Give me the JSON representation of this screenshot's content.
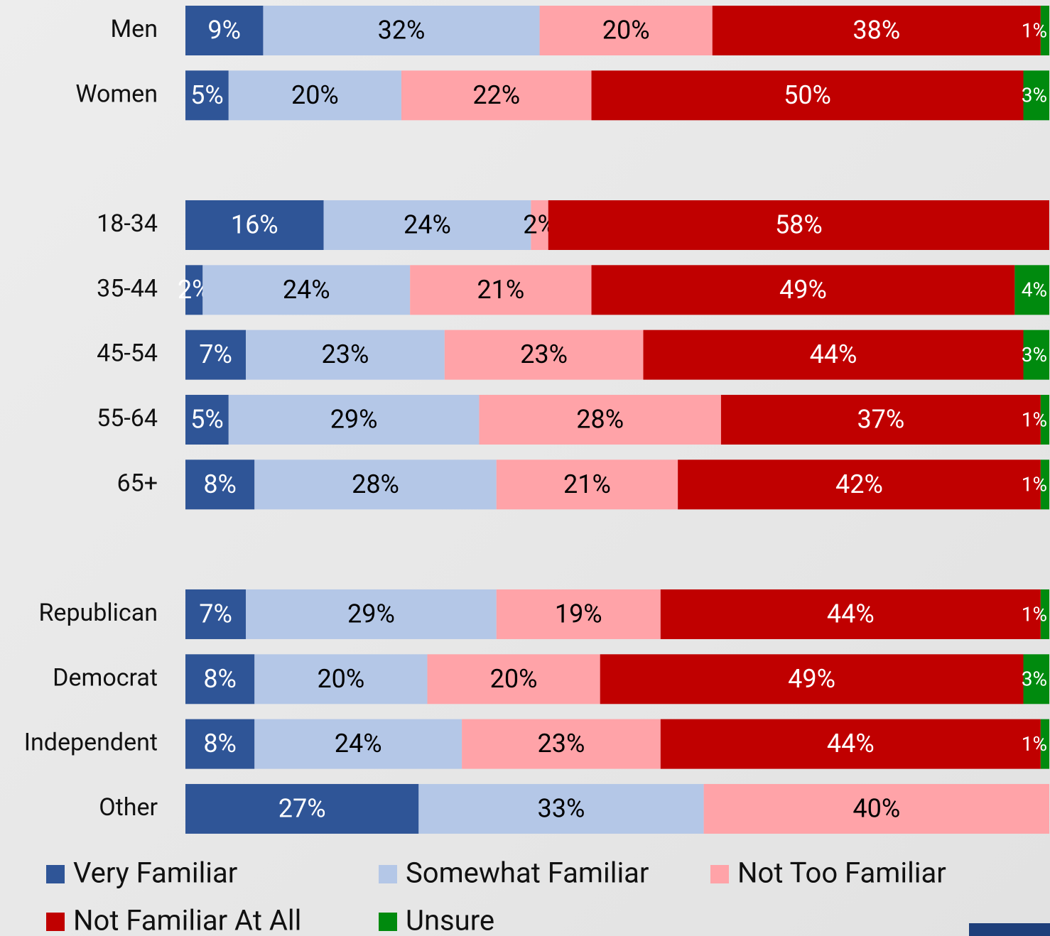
{
  "chart_data": {
    "type": "stacked-bar-horizontal",
    "categories": [
      "Men",
      "Women",
      null,
      "18-34",
      "35-44",
      "45-54",
      "55-64",
      "65+",
      null,
      "Republican",
      "Democrat",
      "Independent",
      "Other"
    ],
    "xlim": [
      0,
      100
    ],
    "legend": "bottom",
    "series": [
      {
        "name": "Very Familiar",
        "color": "#2f5597",
        "values": [
          9,
          5,
          null,
          16,
          2,
          7,
          5,
          8,
          null,
          7,
          8,
          8,
          27
        ],
        "value_labels": [
          "9%",
          "5%",
          null,
          "16%",
          "2%",
          "7%",
          "5%",
          "8%",
          null,
          "7%",
          "8%",
          "8%",
          "27%"
        ]
      },
      {
        "name": "Somewhat Familiar",
        "color": "#b4c7e7",
        "values": [
          32,
          20,
          null,
          24,
          24,
          23,
          29,
          28,
          null,
          29,
          20,
          24,
          33
        ],
        "value_labels": [
          "32%",
          "20%",
          null,
          "24%",
          "24%",
          "23%",
          "29%",
          "28%",
          null,
          "29%",
          "20%",
          "24%",
          "33%"
        ]
      },
      {
        "name": "Not Too Familiar",
        "color": "#ffa3a8",
        "values": [
          20,
          22,
          null,
          2,
          21,
          23,
          28,
          21,
          null,
          19,
          20,
          23,
          40
        ],
        "value_labels": [
          "20%",
          "22%",
          null,
          "2%",
          "21%",
          "23%",
          "28%",
          "21%",
          null,
          "19%",
          "20%",
          "23%",
          "40%"
        ]
      },
      {
        "name": "Not Familiar At All",
        "color": "#c00000",
        "values": [
          38,
          50,
          null,
          58,
          49,
          44,
          37,
          42,
          null,
          44,
          49,
          44,
          null
        ],
        "value_labels": [
          "38%",
          "50%",
          null,
          "58%",
          "49%",
          "44%",
          "37%",
          "42%",
          null,
          "44%",
          "49%",
          "44%",
          null
        ]
      },
      {
        "name": "Unsure",
        "color": "#008a0e",
        "values": [
          1,
          3,
          null,
          null,
          4,
          3,
          1,
          1,
          null,
          1,
          3,
          1,
          null
        ],
        "value_labels": [
          "1%",
          "3%",
          null,
          null,
          "4%",
          "3%",
          "1%",
          "1%",
          null,
          "1%",
          "3%",
          "1%",
          null
        ]
      }
    ]
  }
}
